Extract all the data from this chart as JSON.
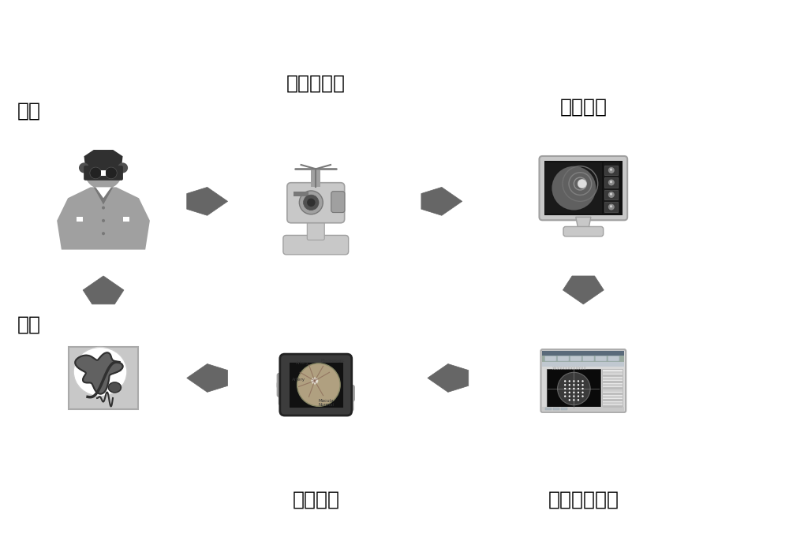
{
  "background_color": "#ffffff",
  "fig_width": 10.0,
  "fig_height": 6.9,
  "dpi": 100,
  "labels": {
    "patient": "病人",
    "fundus_camera": "眼底摄像价",
    "display_device_top": "显示设备",
    "doctor": "医生",
    "display_device_bottom": "显示设备",
    "diagnostic_software": "辅助诊断软件"
  },
  "arrow_color": "#666666",
  "text_color": "#000000",
  "label_fontsize": 18
}
